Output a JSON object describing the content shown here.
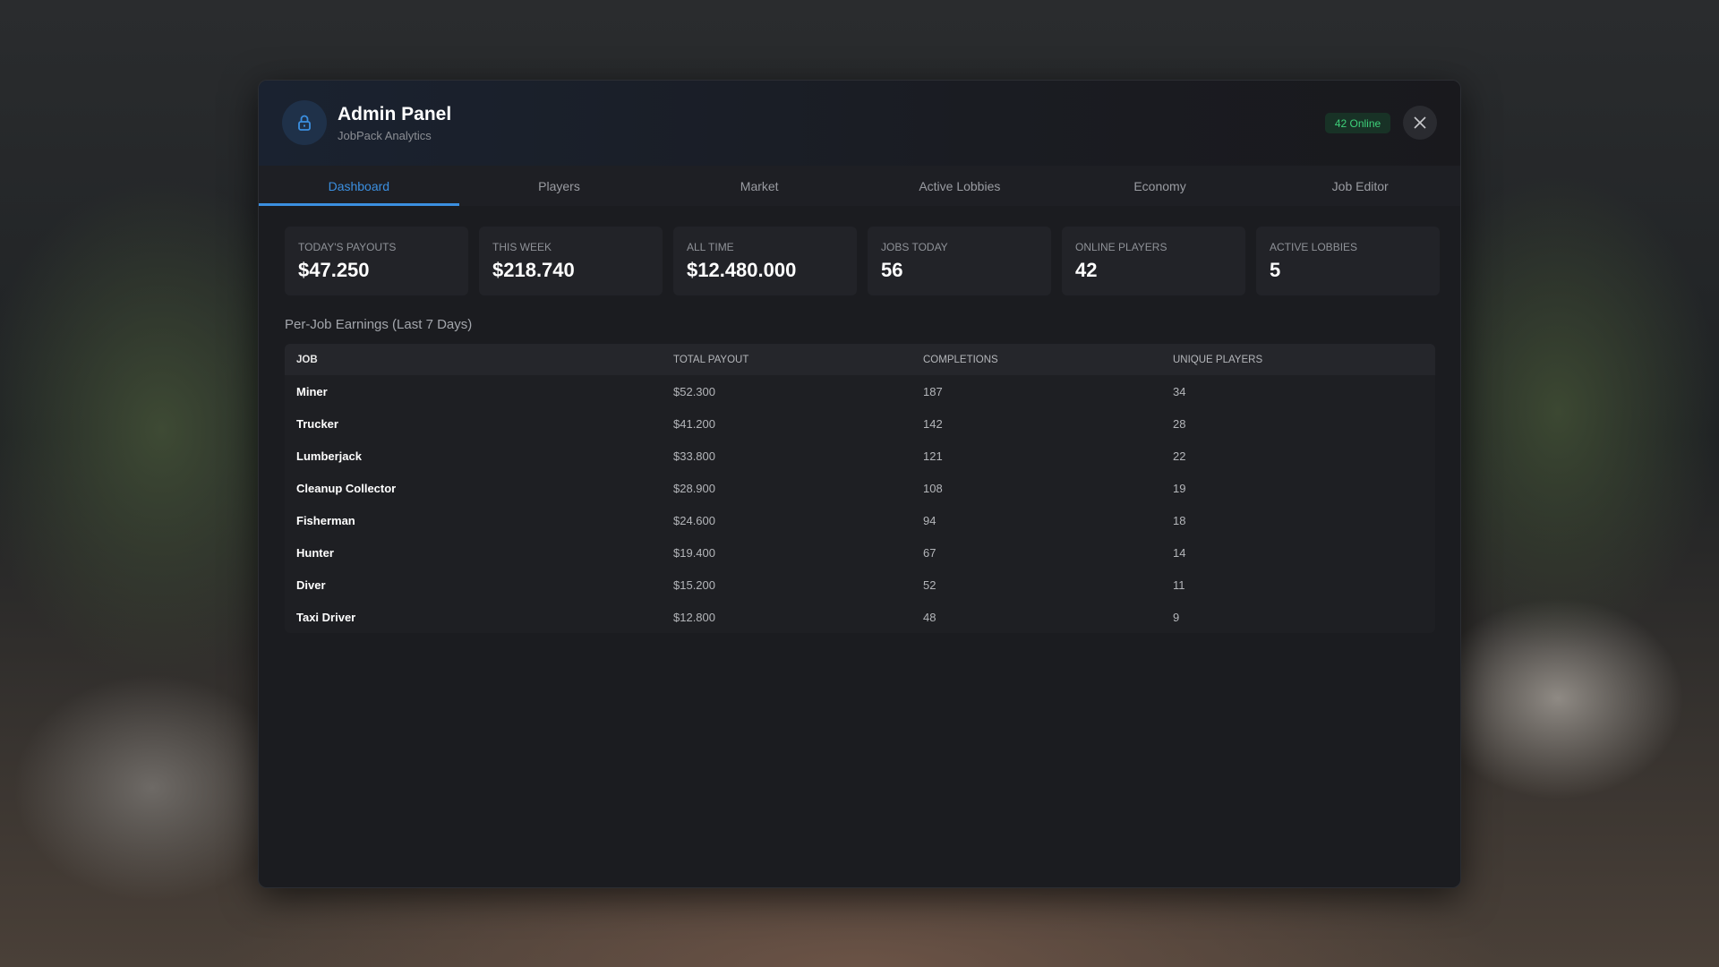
{
  "header": {
    "title": "Admin Panel",
    "subtitle": "JobPack Analytics",
    "online_badge": "42 Online"
  },
  "tabs": [
    {
      "label": "Dashboard",
      "active": true
    },
    {
      "label": "Players"
    },
    {
      "label": "Market"
    },
    {
      "label": "Active Lobbies"
    },
    {
      "label": "Economy"
    },
    {
      "label": "Job Editor"
    }
  ],
  "stats": [
    {
      "label": "Today's Payouts",
      "value": "$47.250"
    },
    {
      "label": "This Week",
      "value": "$218.740"
    },
    {
      "label": "All Time",
      "value": "$12.480.000"
    },
    {
      "label": "Jobs Today",
      "value": "56"
    },
    {
      "label": "Online Players",
      "value": "42"
    },
    {
      "label": "Active Lobbies",
      "value": "5"
    }
  ],
  "section_title": "Per-Job Earnings (Last 7 Days)",
  "table": {
    "columns": [
      "Job",
      "Total Payout",
      "Completions",
      "Unique Players"
    ],
    "rows": [
      [
        "Miner",
        "$52.300",
        "187",
        "34"
      ],
      [
        "Trucker",
        "$41.200",
        "142",
        "28"
      ],
      [
        "Lumberjack",
        "$33.800",
        "121",
        "22"
      ],
      [
        "Cleanup Collector",
        "$28.900",
        "108",
        "19"
      ],
      [
        "Fisherman",
        "$24.600",
        "94",
        "18"
      ],
      [
        "Hunter",
        "$19.400",
        "67",
        "14"
      ],
      [
        "Diver",
        "$15.200",
        "52",
        "11"
      ],
      [
        "Taxi Driver",
        "$12.800",
        "48",
        "9"
      ]
    ]
  },
  "colors": {
    "accent": "#3b8fe0",
    "online": "#3ed07a",
    "panel": "#1b1c20"
  }
}
